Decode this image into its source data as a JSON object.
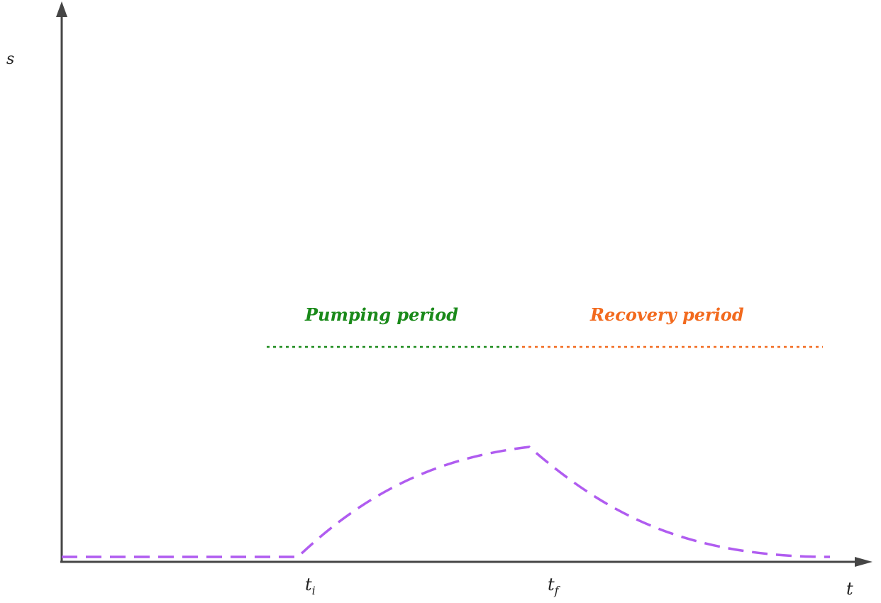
{
  "axes": {
    "y_label": "s",
    "x_label": "t",
    "axis_color": "#454545"
  },
  "ticks": {
    "t_i": {
      "base": "t",
      "sub": "i"
    },
    "t_f": {
      "base": "t",
      "sub": "f"
    }
  },
  "periods": {
    "pumping": {
      "label": "Pumping period",
      "color": "#1a8a1a"
    },
    "recovery": {
      "label": "Recovery period",
      "color": "#f26a1e"
    }
  },
  "curve": {
    "color": "#b05cf0",
    "style": "dashed"
  }
}
